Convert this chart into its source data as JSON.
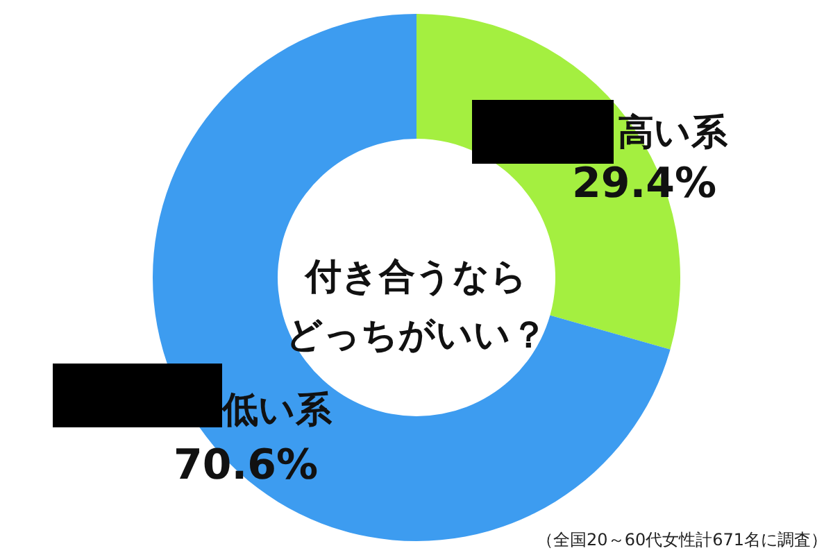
{
  "chart_data": {
    "type": "donut",
    "title": "付き合うならどっちがいい？",
    "categories": [
      "高い系",
      "低い系"
    ],
    "values": [
      29.4,
      70.6
    ],
    "value_labels": [
      "29.4%",
      "70.6%"
    ],
    "colors": [
      "#a4ef40",
      "#3d9cf0"
    ],
    "annotations": [
      "（全国20～60代女性計671名に調査）"
    ]
  }
}
